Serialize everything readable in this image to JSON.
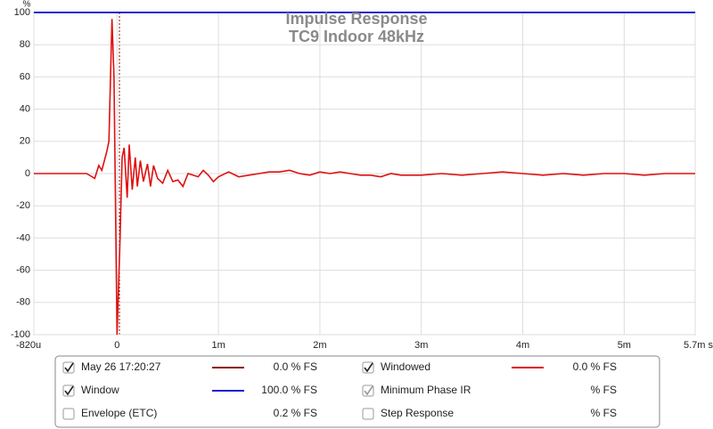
{
  "chart_data": {
    "type": "line",
    "title": "Impulse Response",
    "subtitle": "TC9 Indoor 48kHz",
    "y_unit": "%",
    "xlim": [
      -0.00082,
      0.0057
    ],
    "ylim": [
      -100,
      100
    ],
    "xticks": [
      {
        "value": -0.00082,
        "label": "-820u"
      },
      0,
      {
        "value": 0.001,
        "label": "1m"
      },
      {
        "value": 0.002,
        "label": "2m"
      },
      {
        "value": 0.003,
        "label": "3m"
      },
      {
        "value": 0.004,
        "label": "4m"
      },
      {
        "value": 0.005,
        "label": "5m"
      },
      {
        "value": 0.0057,
        "label": "5.7m s"
      }
    ],
    "yticks": [
      -100,
      -80,
      -60,
      -40,
      -20,
      0,
      20,
      40,
      60,
      80,
      100
    ],
    "grid": true,
    "series": [
      {
        "name": "Window",
        "color": "#2020d0",
        "x": [
          -0.00082,
          0.0057
        ],
        "values": [
          100,
          100
        ]
      },
      {
        "name": "Windowed",
        "color": "#e01010",
        "x": [
          -0.00082,
          -0.0003,
          -0.00022,
          -0.00018,
          -0.00015,
          -0.0001,
          -8e-05,
          -5e-05,
          -3e-05,
          0,
          3e-05,
          5e-05,
          7e-05,
          0.0001,
          0.00012,
          0.00015,
          0.00018,
          0.0002,
          0.00023,
          0.00026,
          0.0003,
          0.00033,
          0.00036,
          0.0004,
          0.00045,
          0.0005,
          0.00055,
          0.0006,
          0.00065,
          0.0007,
          0.0008,
          0.00085,
          0.0009,
          0.00095,
          0.001,
          0.0011,
          0.0012,
          0.0013,
          0.0014,
          0.0015,
          0.0016,
          0.0017,
          0.0018,
          0.0019,
          0.002,
          0.0021,
          0.0022,
          0.0023,
          0.0024,
          0.0025,
          0.0026,
          0.0027,
          0.0028,
          0.003,
          0.0032,
          0.0034,
          0.0036,
          0.0038,
          0.004,
          0.0042,
          0.0044,
          0.0046,
          0.0048,
          0.005,
          0.0052,
          0.0054,
          0.0056,
          0.0057
        ],
        "values": [
          0,
          0,
          -3,
          5,
          2,
          14,
          20,
          96,
          60,
          -100,
          -40,
          10,
          16,
          -15,
          18,
          -10,
          10,
          -8,
          8,
          -5,
          6,
          -8,
          5,
          -3,
          -6,
          2,
          -5,
          -4,
          -8,
          0,
          -2,
          2,
          -1,
          -5,
          -2,
          1,
          -2,
          -1,
          0,
          1,
          1,
          2,
          0,
          -1,
          1,
          0,
          1,
          0,
          -1,
          -1,
          -2,
          0,
          -1,
          -1,
          0,
          -1,
          0,
          1,
          0,
          -1,
          0,
          -1,
          0,
          0,
          -1,
          0,
          0,
          0
        ]
      }
    ]
  },
  "legend_panel": {
    "items": [
      {
        "label": "May 26 17:20:27",
        "value": "0.0 % FS",
        "checked": true,
        "color": "#8b1010"
      },
      {
        "label": "Windowed",
        "value": "0.0 % FS",
        "checked": true,
        "color": "#e01010"
      },
      {
        "label": "Window",
        "value": "100.0 % FS",
        "checked": true,
        "color": "#2020d0"
      },
      {
        "label": "Minimum Phase IR",
        "value": "% FS",
        "checked": true,
        "color": "#909090"
      },
      {
        "label": "Envelope (ETC)",
        "value": "0.2 % FS",
        "checked": false,
        "color": "#6a1a1a"
      },
      {
        "label": "Step Response",
        "value": "% FS",
        "checked": false,
        "color": "#7a0000"
      }
    ]
  }
}
